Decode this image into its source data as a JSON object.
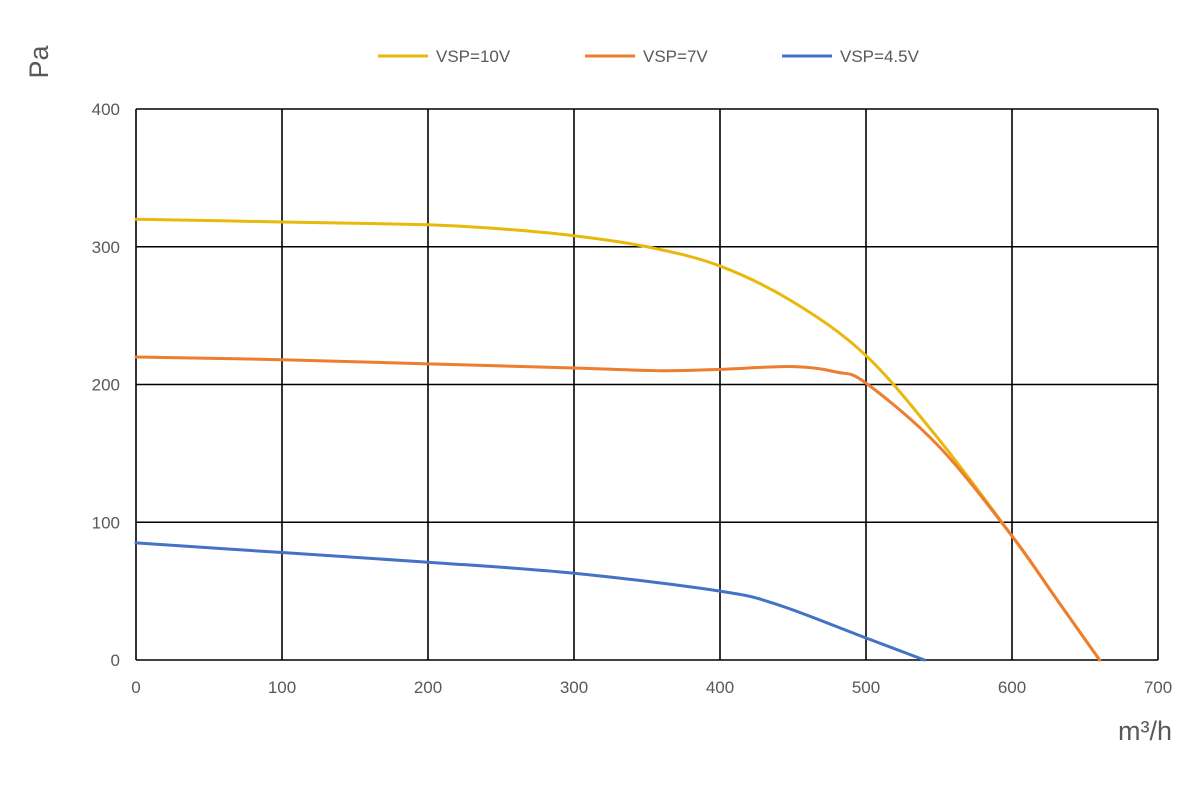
{
  "chart_data": {
    "type": "line",
    "xlabel": "m³/h",
    "ylabel": "Pa",
    "xlim": [
      0,
      700
    ],
    "ylim": [
      0,
      400
    ],
    "xticks": [
      "0",
      "100",
      "200",
      "300",
      "400",
      "500",
      "600",
      "700"
    ],
    "yticks": [
      "0",
      "100",
      "200",
      "300",
      "400"
    ],
    "grid": true,
    "legend_position": "top",
    "series": [
      {
        "name": "VSP=10V",
        "color": "#E8B80C",
        "x": [
          0,
          100,
          200,
          250,
          300,
          350,
          400,
          450,
          500,
          550,
          600,
          630,
          660
        ],
        "y": [
          320,
          318,
          316,
          313,
          308,
          300,
          286,
          260,
          221,
          160,
          90,
          45,
          0
        ]
      },
      {
        "name": "VSP=7V",
        "color": "#ED7D31",
        "x": [
          0,
          100,
          200,
          300,
          360,
          400,
          450,
          480,
          500,
          550,
          600,
          630,
          660
        ],
        "y": [
          220,
          218,
          215,
          212,
          210,
          211,
          213,
          209,
          201,
          155,
          90,
          45,
          0
        ]
      },
      {
        "name": "VSP=4.5V",
        "color": "#4472C4",
        "x": [
          0,
          100,
          200,
          300,
          400,
          440,
          500,
          540
        ],
        "y": [
          85,
          78,
          71,
          63,
          50,
          40,
          16,
          0
        ]
      }
    ]
  }
}
